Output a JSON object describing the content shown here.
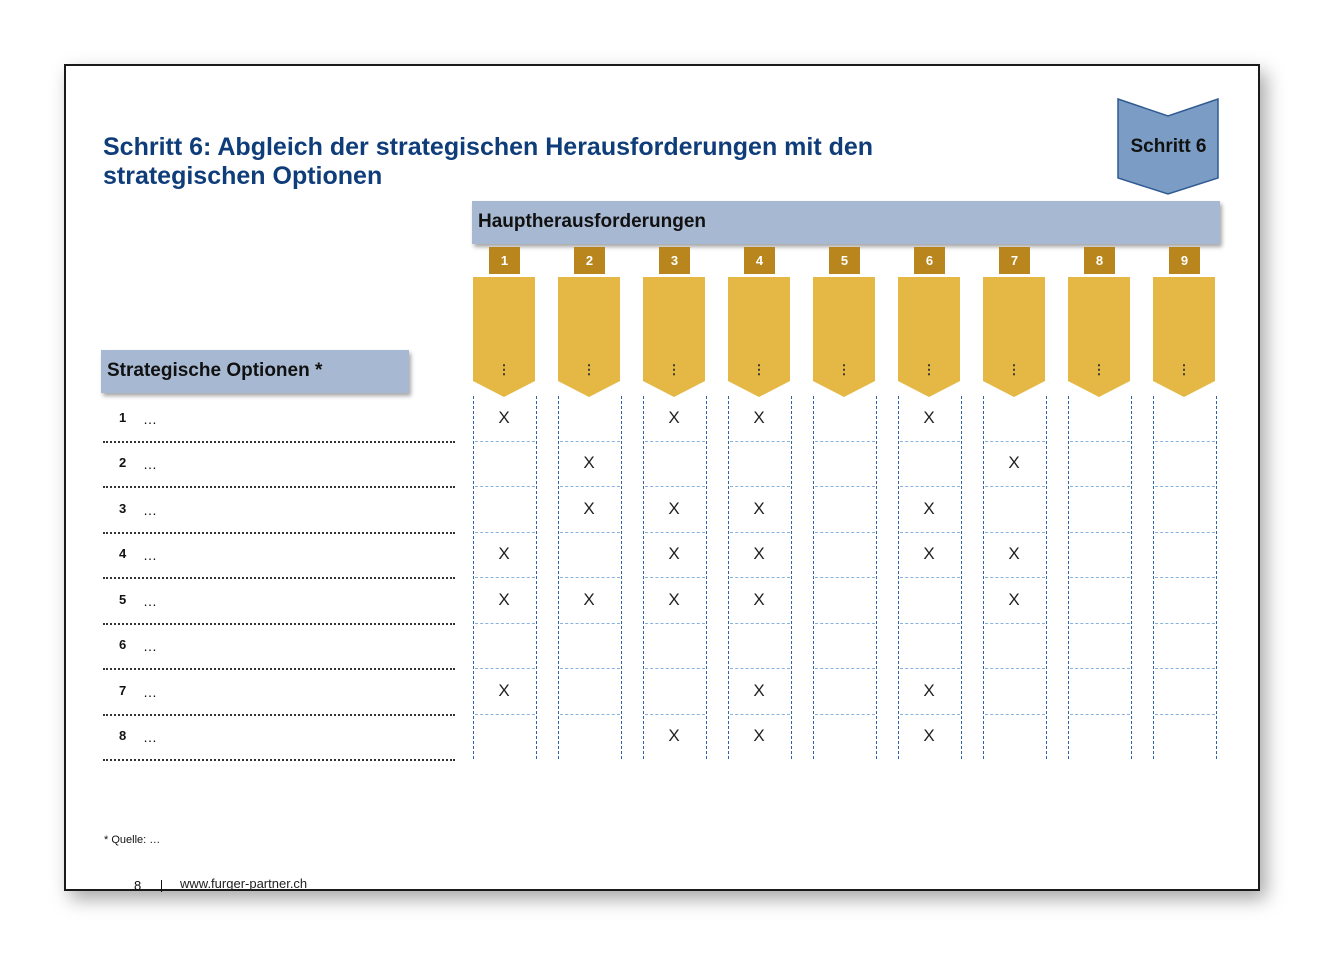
{
  "title": "Schritt 6: Abgleich der strategischen Herausforderungen mit den strategischen Optionen",
  "step_badge": "Schritt 6",
  "challenges_header": "Hauptherausforderungen",
  "options_header": "Strategische Optionen *",
  "challenges": [
    {
      "num": "1",
      "label": "⋮"
    },
    {
      "num": "2",
      "label": "⋮"
    },
    {
      "num": "3",
      "label": "⋮"
    },
    {
      "num": "4",
      "label": "⋮"
    },
    {
      "num": "5",
      "label": "⋮"
    },
    {
      "num": "6",
      "label": "⋮"
    },
    {
      "num": "7",
      "label": "⋮"
    },
    {
      "num": "8",
      "label": "⋮"
    },
    {
      "num": "9",
      "label": "⋮"
    }
  ],
  "options": [
    {
      "num": "1",
      "text": "…",
      "marks": [
        1,
        3,
        4,
        6
      ]
    },
    {
      "num": "2",
      "text": "…",
      "marks": [
        2,
        7
      ]
    },
    {
      "num": "3",
      "text": "…",
      "marks": [
        2,
        3,
        4,
        6
      ]
    },
    {
      "num": "4",
      "text": "…",
      "marks": [
        1,
        3,
        4,
        6,
        7
      ]
    },
    {
      "num": "5",
      "text": "…",
      "marks": [
        1,
        2,
        3,
        4,
        7
      ]
    },
    {
      "num": "6",
      "text": "…",
      "marks": []
    },
    {
      "num": "7",
      "text": "…",
      "marks": [
        1,
        4,
        6
      ]
    },
    {
      "num": "8",
      "text": "…",
      "marks": [
        3,
        4,
        6
      ]
    }
  ],
  "mark_symbol": "X",
  "footnote": "* Quelle:   …",
  "page_number": "8",
  "url": "www.furger-partner.ch",
  "colors": {
    "title": "#0f3d7a",
    "header_bar": "#a7b9d2",
    "number_box": "#b8861c",
    "chevron": "#e5b845",
    "badge": "#7b9cc4",
    "column_border": "#2f63a8"
  }
}
